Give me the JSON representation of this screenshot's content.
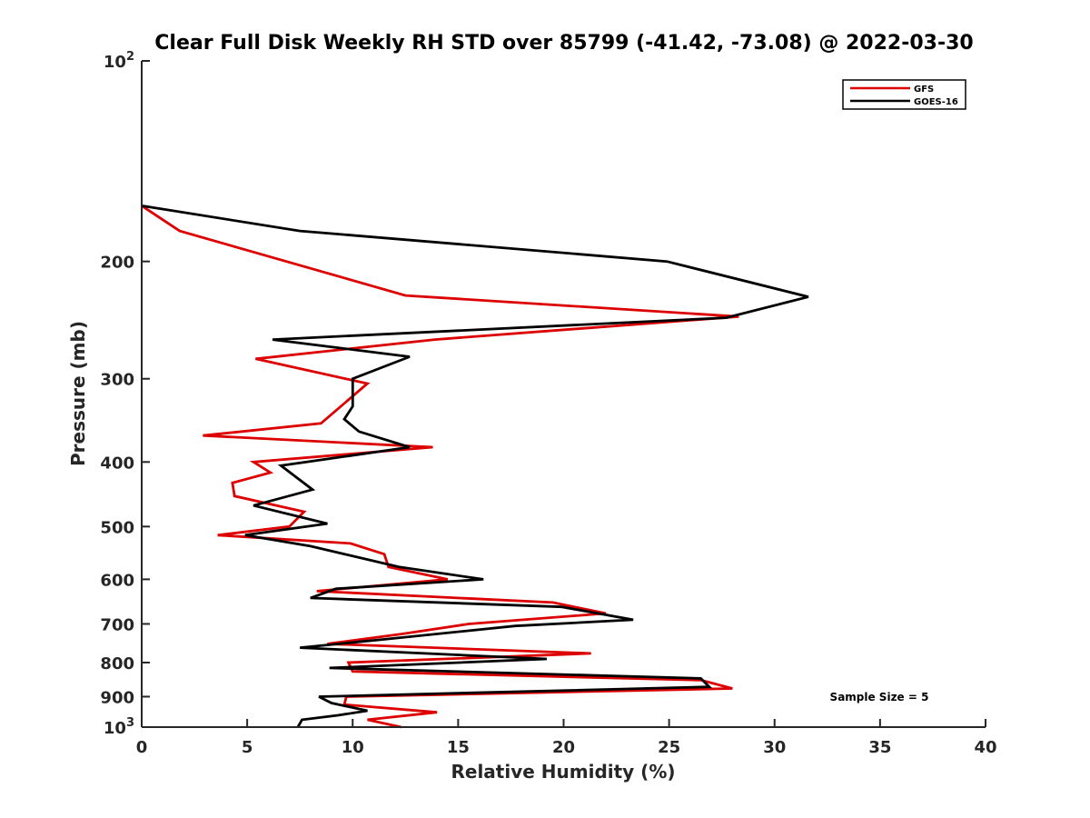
{
  "chart_data": {
    "type": "line",
    "title": "Clear Full Disk Weekly RH STD over 85799 (-41.42, -73.08) @ 2022-03-30",
    "xlabel": "Relative Humidity (%)",
    "ylabel": "Pressure (mb)",
    "xlim": [
      0,
      40
    ],
    "ylim": [
      100,
      1000
    ],
    "y_scale": "log",
    "y_reversed": true,
    "x_ticks": [
      {
        "value": 0,
        "label": "0"
      },
      {
        "value": 5,
        "label": "5"
      },
      {
        "value": 10,
        "label": "10"
      },
      {
        "value": 15,
        "label": "15"
      },
      {
        "value": 20,
        "label": "20"
      },
      {
        "value": 25,
        "label": "25"
      },
      {
        "value": 30,
        "label": "30"
      },
      {
        "value": 35,
        "label": "35"
      },
      {
        "value": 40,
        "label": "40"
      }
    ],
    "y_ticks": [
      {
        "value": 100,
        "base": "10",
        "exp": "2"
      },
      {
        "value": 200,
        "label": "200"
      },
      {
        "value": 300,
        "label": "300"
      },
      {
        "value": 400,
        "label": "400"
      },
      {
        "value": 500,
        "label": "500"
      },
      {
        "value": 600,
        "label": "600"
      },
      {
        "value": 700,
        "label": "700"
      },
      {
        "value": 800,
        "label": "800"
      },
      {
        "value": 900,
        "label": "900"
      },
      {
        "value": 1000,
        "base": "10",
        "exp": "3"
      }
    ],
    "grid": false,
    "legend_position": "top-right",
    "annotation": "Sample Size = 5",
    "series": [
      {
        "name": "GFS",
        "color": "#dd0000",
        "points": [
          [
            12.3,
            1000
          ],
          [
            10.7,
            975
          ],
          [
            14.0,
            950
          ],
          [
            9.6,
            925
          ],
          [
            9.7,
            900
          ],
          [
            28.0,
            875
          ],
          [
            26.5,
            850
          ],
          [
            10.0,
            825
          ],
          [
            9.8,
            800
          ],
          [
            21.3,
            775
          ],
          [
            8.8,
            750
          ],
          [
            12.3,
            725
          ],
          [
            15.5,
            700
          ],
          [
            22.0,
            675
          ],
          [
            19.5,
            650
          ],
          [
            8.3,
            625
          ],
          [
            14.5,
            600
          ],
          [
            11.7,
            575
          ],
          [
            11.5,
            550
          ],
          [
            9.9,
            530
          ],
          [
            3.6,
            515
          ],
          [
            7.0,
            500
          ],
          [
            7.7,
            475
          ],
          [
            4.4,
            450
          ],
          [
            4.3,
            430
          ],
          [
            6.1,
            415
          ],
          [
            5.3,
            400
          ],
          [
            13.8,
            380
          ],
          [
            2.9,
            365
          ],
          [
            8.5,
            350
          ],
          [
            10.7,
            305
          ],
          [
            5.4,
            280
          ],
          [
            13.9,
            262
          ],
          [
            28.3,
            242
          ],
          [
            12.5,
            225
          ],
          [
            1.8,
            180
          ],
          [
            0.0,
            165
          ]
        ]
      },
      {
        "name": "GOES-16",
        "color": "#000000",
        "points": [
          [
            7.4,
            1000
          ],
          [
            7.6,
            975
          ],
          [
            9.3,
            960
          ],
          [
            10.7,
            945
          ],
          [
            9.0,
            920
          ],
          [
            8.4,
            900
          ],
          [
            26.9,
            870
          ],
          [
            26.5,
            845
          ],
          [
            8.9,
            815
          ],
          [
            19.2,
            790
          ],
          [
            7.5,
            760
          ],
          [
            11.2,
            740
          ],
          [
            17.7,
            705
          ],
          [
            23.3,
            690
          ],
          [
            19.9,
            660
          ],
          [
            8.0,
            640
          ],
          [
            9.2,
            620
          ],
          [
            16.2,
            600
          ],
          [
            12.2,
            575
          ],
          [
            8.0,
            535
          ],
          [
            4.9,
            515
          ],
          [
            8.8,
            495
          ],
          [
            5.3,
            465
          ],
          [
            8.1,
            440
          ],
          [
            6.6,
            405
          ],
          [
            12.7,
            380
          ],
          [
            10.3,
            360
          ],
          [
            9.6,
            345
          ],
          [
            10.0,
            330
          ],
          [
            10.0,
            300
          ],
          [
            12.7,
            278
          ],
          [
            6.2,
            262
          ],
          [
            27.7,
            243
          ],
          [
            31.6,
            226
          ],
          [
            24.9,
            200
          ],
          [
            7.5,
            180
          ],
          [
            0.0,
            165
          ]
        ]
      }
    ]
  }
}
